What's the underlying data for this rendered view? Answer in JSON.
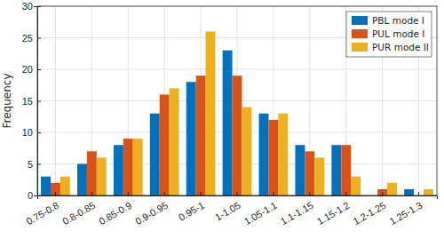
{
  "chart_data": {
    "type": "bar",
    "y_label": "Frequency",
    "categories": [
      "0.75-0.8",
      "0.8-0.85",
      "0.85-0.9",
      "0.9-0.95",
      "0.95-1",
      "1-1.05",
      "1.05-1.1",
      "1.1-1.15",
      "1.15-1.2",
      "1.2-1.25",
      "1.25-1.3"
    ],
    "series": [
      {
        "name": "PBL mode I",
        "color": "#0072bd",
        "values": [
          3,
          5,
          8,
          13,
          18,
          23,
          13,
          8,
          8,
          0,
          1
        ]
      },
      {
        "name": "PUL mode I",
        "color": "#d95319",
        "values": [
          2,
          7,
          9,
          16,
          19,
          19,
          12,
          7,
          8,
          1,
          0
        ]
      },
      {
        "name": "PUR mode II",
        "color": "#edb120",
        "values": [
          3,
          6,
          9,
          17,
          26,
          14,
          13,
          6,
          3,
          2,
          1
        ]
      }
    ],
    "ylim": [
      0,
      30
    ],
    "yticks": [
      0,
      5,
      10,
      15,
      20,
      25,
      30
    ],
    "grid": true,
    "legend": "northeast"
  }
}
